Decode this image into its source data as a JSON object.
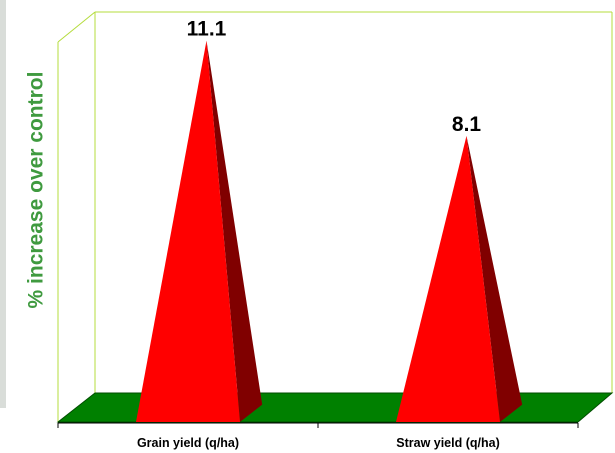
{
  "chart_data": {
    "type": "bar",
    "title": "",
    "xlabel": "",
    "ylabel": "% increase over control",
    "categories": [
      "Grain yield (q/ha)",
      "Straw yield (q/ha)"
    ],
    "values": [
      11.1,
      8.1
    ],
    "value_labels": [
      "11.1",
      "8.1"
    ],
    "ylim": [
      0,
      12
    ],
    "grid": false,
    "bar_shape": "pyramid",
    "colors": {
      "bar_front": "#ff0000",
      "bar_side": "#800000",
      "floor": "#008000",
      "walls": "#b4dc3c",
      "axis_label": "#3f9a3f"
    }
  }
}
